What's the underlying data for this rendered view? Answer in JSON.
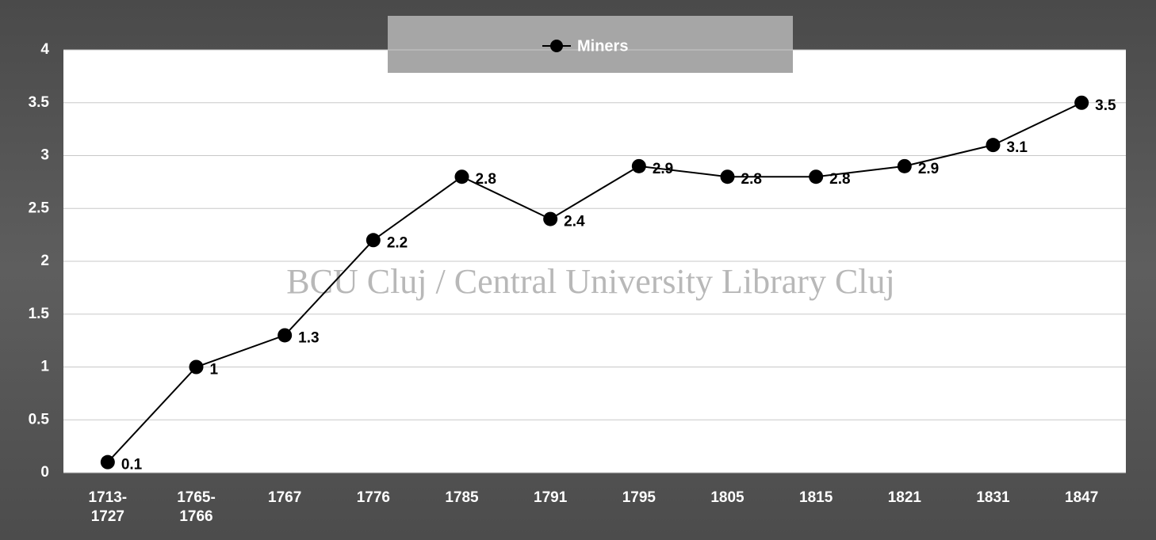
{
  "chart_data": {
    "type": "line",
    "categories": [
      "1713-1727",
      "1765-1766",
      "1767",
      "1776",
      "1785",
      "1791",
      "1795",
      "1805",
      "1815",
      "1821",
      "1831",
      "1847"
    ],
    "series": [
      {
        "name": "Miners",
        "color": "#000000",
        "values": [
          0.1,
          1,
          1.3,
          2.2,
          2.8,
          2.4,
          2.9,
          2.8,
          2.8,
          2.9,
          3.1,
          3.5
        ]
      }
    ],
    "ylim": [
      0,
      4
    ],
    "yticks": [
      0,
      0.5,
      1,
      1.5,
      2,
      2.5,
      3,
      3.5,
      4
    ],
    "grid": true,
    "legend": "top",
    "watermark": "BCU Cluj / Central University Library Cluj"
  }
}
